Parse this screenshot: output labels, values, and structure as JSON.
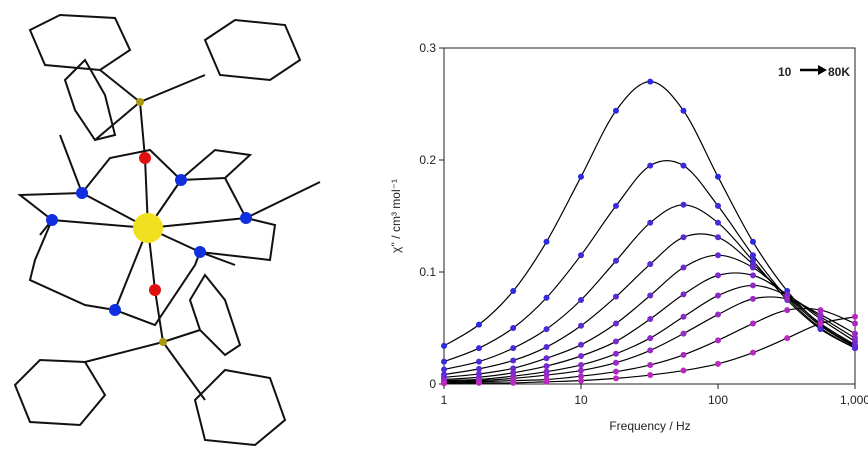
{
  "chart_data": {
    "type": "scatter",
    "x_label": "Frequency / Hz",
    "y_label": "χ'' / cm³ mol⁻¹",
    "log_x": true,
    "xlim": [
      1,
      1000
    ],
    "ylim": [
      0,
      0.3
    ],
    "xticks": [
      1,
      10,
      100,
      {
        "value": 1000,
        "label": "1,000"
      }
    ],
    "yticks": [
      0,
      0.1,
      0.2,
      0.3
    ],
    "fit_line_color": "#000000",
    "annotations": [
      {
        "text": "10",
        "color": "#1f4fd8"
      },
      {
        "text": "80K",
        "color": "#e02020"
      }
    ],
    "x": [
      1,
      1.8,
      3.2,
      5.6,
      10,
      18,
      32,
      56,
      100,
      180,
      320,
      560,
      1000
    ],
    "series": [
      {
        "color": "#2a2ae0",
        "values": [
          0.034,
          0.053,
          0.083,
          0.127,
          0.185,
          0.244,
          0.27,
          0.244,
          0.185,
          0.127,
          0.083,
          0.053,
          0.034
        ]
      },
      {
        "color": "#3a2adc",
        "values": [
          0.02,
          0.032,
          0.05,
          0.077,
          0.115,
          0.159,
          0.195,
          0.195,
          0.159,
          0.115,
          0.077,
          0.05,
          0.032
        ]
      },
      {
        "color": "#4a2ad8",
        "values": [
          0.013,
          0.02,
          0.032,
          0.049,
          0.075,
          0.11,
          0.144,
          0.16,
          0.144,
          0.11,
          0.075,
          0.049,
          0.032
        ]
      },
      {
        "color": "#5a2ad4",
        "values": [
          0.0085,
          0.0135,
          0.021,
          0.033,
          0.052,
          0.078,
          0.107,
          0.131,
          0.131,
          0.107,
          0.078,
          0.052,
          0.033
        ]
      },
      {
        "color": "#6a2ad0",
        "values": [
          0.006,
          0.009,
          0.014,
          0.023,
          0.035,
          0.054,
          0.079,
          0.104,
          0.115,
          0.104,
          0.079,
          0.054,
          0.035
        ]
      },
      {
        "color": "#7a2acc",
        "values": [
          0.004,
          0.006,
          0.01,
          0.016,
          0.025,
          0.038,
          0.058,
          0.08,
          0.097,
          0.097,
          0.08,
          0.058,
          0.038
        ]
      },
      {
        "color": "#8a2ac8",
        "values": [
          0.003,
          0.004,
          0.007,
          0.011,
          0.017,
          0.027,
          0.041,
          0.06,
          0.079,
          0.088,
          0.079,
          0.06,
          0.041
        ]
      },
      {
        "color": "#9a2ac4",
        "values": [
          0.002,
          0.003,
          0.005,
          0.008,
          0.012,
          0.019,
          0.03,
          0.045,
          0.062,
          0.076,
          0.076,
          0.062,
          0.045
        ]
      },
      {
        "color": "#aa2ac0",
        "values": [
          0.001,
          0.002,
          0.003,
          0.004,
          0.007,
          0.011,
          0.017,
          0.026,
          0.039,
          0.054,
          0.066,
          0.066,
          0.054
        ]
      },
      {
        "color": "#ba2abc",
        "values": [
          0.0005,
          0.001,
          0.001,
          0.002,
          0.003,
          0.005,
          0.008,
          0.012,
          0.018,
          0.028,
          0.041,
          0.054,
          0.06
        ]
      }
    ]
  }
}
